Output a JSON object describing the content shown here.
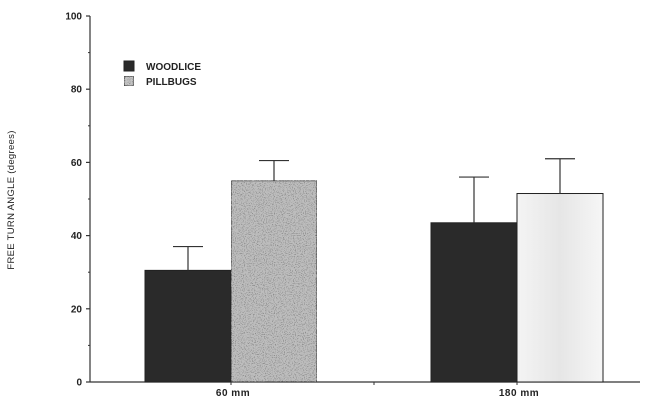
{
  "chart_data": {
    "type": "bar",
    "ylabel": "FREE TURN ANGLE (degrees)",
    "xlabel": "",
    "ylim": [
      0,
      100
    ],
    "yticks": [
      0,
      20,
      40,
      60,
      80,
      100
    ],
    "categories": [
      "60  mm",
      "180  mm"
    ],
    "series": [
      {
        "name": "WOODLICE",
        "values": [
          30.5,
          43.5
        ],
        "errors": [
          6.5,
          12.5
        ],
        "color": "#2a2a2a"
      },
      {
        "name": "PILLBUGS",
        "values": [
          55,
          51.5
        ],
        "errors": [
          5.5,
          9.5
        ],
        "color": "#cfcfcf"
      }
    ],
    "legend_position": "top-left",
    "grid": false
  }
}
